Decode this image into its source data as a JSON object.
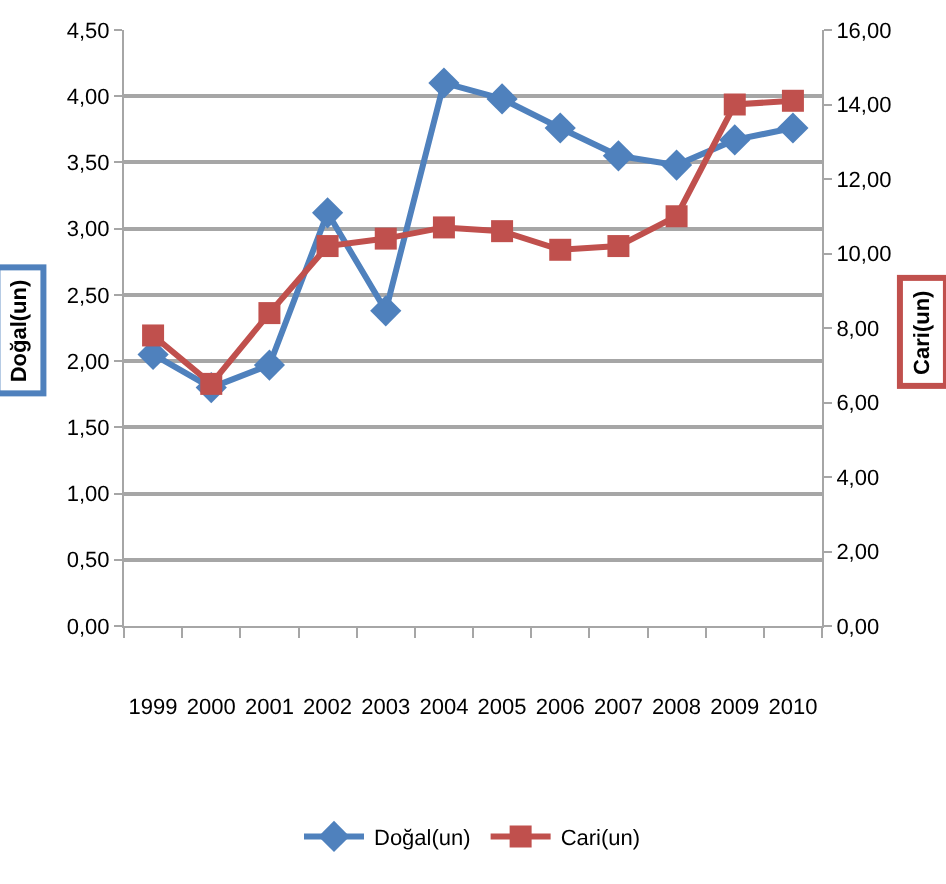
{
  "chart_data": {
    "type": "line",
    "categories": [
      "1999",
      "2000",
      "2001",
      "2002",
      "2003",
      "2004",
      "2005",
      "2006",
      "2007",
      "2008",
      "2009",
      "2010"
    ],
    "ylabel": "Doğal(un)",
    "y2label": "Cari(un)",
    "ylim": [
      0,
      4.5
    ],
    "yticks": [
      {
        "value": 0,
        "label": "0,00"
      },
      {
        "value": 0.5,
        "label": "0,50"
      },
      {
        "value": 1,
        "label": "1,00"
      },
      {
        "value": 1.5,
        "label": "1,50"
      },
      {
        "value": 2,
        "label": "2,00"
      },
      {
        "value": 2.5,
        "label": "2,50"
      },
      {
        "value": 3,
        "label": "3,00"
      },
      {
        "value": 3.5,
        "label": "3,50"
      },
      {
        "value": 4,
        "label": "4,00"
      },
      {
        "value": 4.5,
        "label": "4,50"
      }
    ],
    "y2lim": [
      0,
      16
    ],
    "y2ticks": [
      {
        "value": 0,
        "label": "0,00"
      },
      {
        "value": 2,
        "label": "2,00"
      },
      {
        "value": 4,
        "label": "4,00"
      },
      {
        "value": 6,
        "label": "6,00"
      },
      {
        "value": 8,
        "label": "8,00"
      },
      {
        "value": 10,
        "label": "10,00"
      },
      {
        "value": 12,
        "label": "12,00"
      },
      {
        "value": 14,
        "label": "14,00"
      },
      {
        "value": 16,
        "label": "16,00"
      }
    ],
    "grid": "y",
    "legend": "bottom",
    "line_style": "solid",
    "series": [
      {
        "name": "Doğal(un)",
        "color": "#4f81bd",
        "marker": "diamond",
        "values": [
          2.05,
          1.8,
          1.97,
          3.12,
          2.38,
          4.1,
          3.98,
          3.76,
          3.55,
          3.48,
          3.67,
          3.76
        ]
      },
      {
        "name": "Cari(un)",
        "color": "#c0504d",
        "marker": "square",
        "axis": "y2",
        "values": [
          7.8,
          6.5,
          8.4,
          10.2,
          10.4,
          10.7,
          10.6,
          10.1,
          10.2,
          11.0,
          14.0,
          14.1
        ]
      }
    ]
  }
}
